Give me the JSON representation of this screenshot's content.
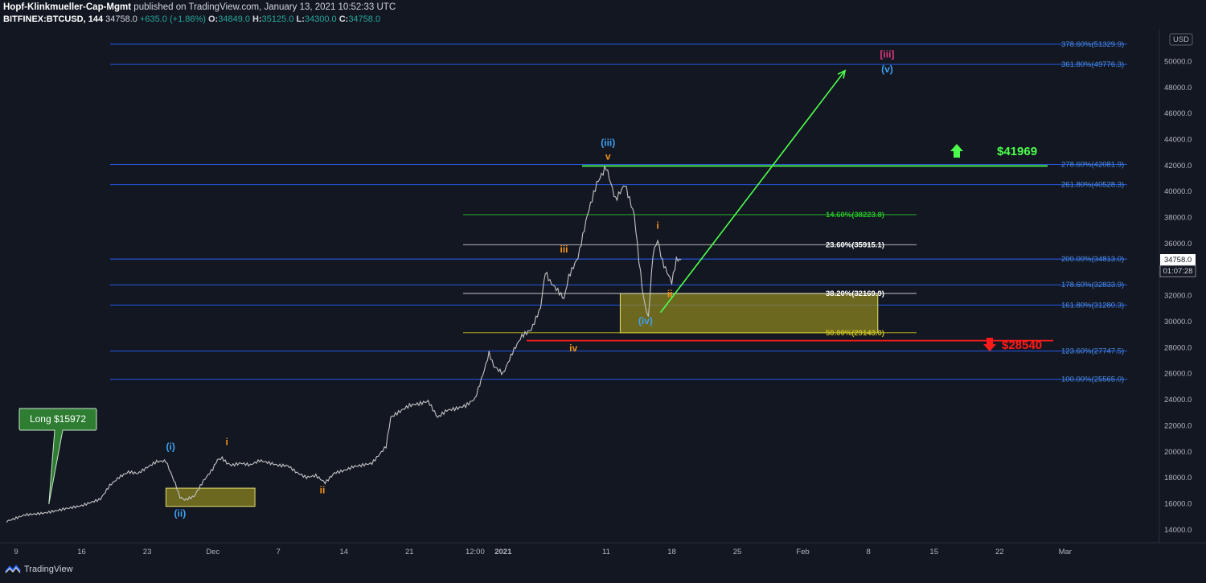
{
  "header": {
    "publisher": "Hopf-Klinkmueller-Cap-Mgmt",
    "published_text": "published on TradingView.com, January 13, 2021 10:52:33 UTC",
    "symbol": "BITFINEX:BTCUSD, 144",
    "last": "34758.0",
    "change": "+635.0 (+1.86%)",
    "o_label": "O:",
    "o_value": "34849.0",
    "h_label": "H:",
    "h_value": "35125.0",
    "l_label": "L:",
    "l_value": "34300.0",
    "c_label": "C:",
    "c_value": "34758.0"
  },
  "footer": {
    "brand": "TradingView"
  },
  "currency": "USD",
  "price_tag": "34758.0",
  "countdown": "01:07:28",
  "colors": {
    "background": "#131722",
    "fib_blue": "#2962ff",
    "fib_text_blue": "#4a8fe7",
    "green": "#4caf50",
    "bright_green": "#4cff4c",
    "red": "#ff1a1a",
    "orange": "#f7931a",
    "wave_blue": "#3da1f0",
    "box_fill": "#8c8420",
    "box_border": "#e5df70",
    "magenta": "#e040fb"
  },
  "chart_data": {
    "type": "line",
    "ylim": [
      13000,
      52500
    ],
    "y_ticks": [
      14000,
      16000,
      18000,
      20000,
      22000,
      24000,
      26000,
      28000,
      30000,
      32000,
      34000,
      36000,
      38000,
      40000,
      42000,
      44000,
      46000,
      48000,
      50000
    ],
    "x_ticks": [
      "9",
      "16",
      "23",
      "Dec",
      "7",
      "14",
      "21",
      "12:00",
      "2021",
      "11",
      "18",
      "25",
      "Feb",
      "8",
      "15",
      "22",
      "Mar"
    ],
    "x_tick_days": [
      0,
      7,
      14,
      21,
      28,
      35,
      42,
      49,
      52,
      63,
      70,
      77,
      84,
      91,
      98,
      105,
      112
    ],
    "price_path": [
      [
        -1,
        14600
      ],
      [
        1,
        15200
      ],
      [
        3,
        15400
      ],
      [
        5,
        15700
      ],
      [
        7,
        15900
      ],
      [
        9,
        16300
      ],
      [
        10,
        17300
      ],
      [
        11,
        17900
      ],
      [
        12,
        18300
      ],
      [
        13,
        18200
      ],
      [
        14,
        18700
      ],
      [
        15,
        19200
      ],
      [
        16,
        19300
      ],
      [
        17,
        17600
      ],
      [
        17.5,
        16600
      ],
      [
        18,
        16400
      ],
      [
        19,
        16700
      ],
      [
        20,
        17900
      ],
      [
        21,
        18800
      ],
      [
        21.5,
        19500
      ],
      [
        22,
        19600
      ],
      [
        22.5,
        19200
      ],
      [
        23,
        19000
      ],
      [
        24,
        19100
      ],
      [
        25,
        18900
      ],
      [
        26,
        19200
      ],
      [
        27,
        19000
      ],
      [
        28,
        18800
      ],
      [
        29,
        18800
      ],
      [
        30,
        18300
      ],
      [
        31,
        18000
      ],
      [
        32,
        18200
      ],
      [
        33,
        17700
      ],
      [
        34,
        18500
      ],
      [
        35,
        18700
      ],
      [
        36,
        19000
      ],
      [
        37,
        19100
      ],
      [
        38,
        19200
      ],
      [
        39,
        20000
      ],
      [
        39.5,
        20400
      ],
      [
        40,
        22600
      ],
      [
        41,
        23000
      ],
      [
        42,
        23400
      ],
      [
        43,
        23500
      ],
      [
        44,
        23700
      ],
      [
        45,
        22500
      ],
      [
        46,
        23100
      ],
      [
        47,
        23300
      ],
      [
        48,
        23600
      ],
      [
        49,
        24200
      ],
      [
        50,
        26500
      ],
      [
        50.5,
        27800
      ],
      [
        51,
        26800
      ],
      [
        52,
        26200
      ],
      [
        53,
        27800
      ],
      [
        54,
        29000
      ],
      [
        55,
        29400
      ],
      [
        56,
        31000
      ],
      [
        56.5,
        33700
      ],
      [
        57,
        32900
      ],
      [
        58,
        32000
      ],
      [
        58.5,
        31500
      ],
      [
        59,
        33200
      ],
      [
        60,
        34700
      ],
      [
        61,
        38000
      ],
      [
        62,
        40500
      ],
      [
        63,
        41900
      ],
      [
        64,
        39500
      ],
      [
        65,
        40800
      ],
      [
        66,
        38500
      ],
      [
        66.5,
        35000
      ],
      [
        67,
        32000
      ],
      [
        67.5,
        30500
      ],
      [
        68,
        35500
      ],
      [
        68.5,
        36500
      ],
      [
        69,
        34800
      ],
      [
        70,
        33100
      ],
      [
        70.5,
        34800
      ],
      [
        71,
        34758
      ]
    ],
    "fib_levels": [
      {
        "label": "378.60%(51329.9)",
        "value": 51329.9
      },
      {
        "label": "361.80%(49776.3)",
        "value": 49776.3
      },
      {
        "label": "278.60%(42081.9)",
        "value": 42081.9
      },
      {
        "label": "261.80%(40528.3)",
        "value": 40528.3
      },
      {
        "label": "200.00%(34813.0)",
        "value": 34813.0
      },
      {
        "label": "178.60%(32833.9)",
        "value": 32833.9
      },
      {
        "label": "161.80%(31280.3)",
        "value": 31280.3
      },
      {
        "label": "123.60%(27747.5)",
        "value": 27747.5
      },
      {
        "label": "100.00%(25565.0)",
        "value": 25565.0
      }
    ],
    "retracements": [
      {
        "label": "14.60%(38223.8)",
        "value": 38223.8,
        "color": "#27c427"
      },
      {
        "label": "23.60%(35915.1)",
        "value": 35915.1,
        "color": "#c8c8c8"
      },
      {
        "label": "38.20%(32169.9)",
        "value": 32169.9,
        "color": "#c8c8c8"
      },
      {
        "label": "50.00%(29143.0)",
        "value": 29143.0,
        "color": "#c9c020"
      }
    ],
    "resistance": {
      "label": "$41969",
      "value": 41969
    },
    "support": {
      "label": "$28540",
      "value": 28540
    },
    "callout": {
      "label": "Long $15972",
      "value": 15972
    },
    "boxes": [
      {
        "x0": 16,
        "x1": 25.5,
        "y0": 15800,
        "y1": 17200
      },
      {
        "x0": 64.5,
        "x1": 92,
        "y0": 29143,
        "y1": 32169.9
      }
    ],
    "target_arrow": {
      "x0": 68.8,
      "y0": 30700,
      "x1": 88.5,
      "y1": 49300
    },
    "wave_labels": [
      {
        "text": "(i)",
        "x": 16.5,
        "y": 20150,
        "color": "#3da1f0"
      },
      {
        "text": "(ii)",
        "x": 17.5,
        "y": 15000,
        "color": "#3da1f0"
      },
      {
        "text": "i",
        "x": 22.5,
        "y": 20500,
        "color": "#f7931a"
      },
      {
        "text": "ii",
        "x": 32.7,
        "y": 16800,
        "color": "#f7931a"
      },
      {
        "text": "iii",
        "x": 58.5,
        "y": 35300,
        "color": "#f7931a"
      },
      {
        "text": "iv",
        "x": 59.5,
        "y": 27700,
        "color": "#f7931a"
      },
      {
        "text": "(iii)",
        "x": 63.2,
        "y": 43500,
        "color": "#3da1f0"
      },
      {
        "text": "v",
        "x": 63.2,
        "y": 42450,
        "color": "#f7931a"
      },
      {
        "text": "i",
        "x": 68.5,
        "y": 37150,
        "color": "#f7931a"
      },
      {
        "text": "ii",
        "x": 69.8,
        "y": 31900,
        "color": "#f7931a"
      },
      {
        "text": "(iv)",
        "x": 67.2,
        "y": 29800,
        "color": "#3da1f0"
      },
      {
        "text": "[iii]",
        "x": 93,
        "y": 50300,
        "color": "#e03a7a"
      },
      {
        "text": "(v)",
        "x": 93,
        "y": 49150,
        "color": "#3da1f0"
      }
    ]
  }
}
